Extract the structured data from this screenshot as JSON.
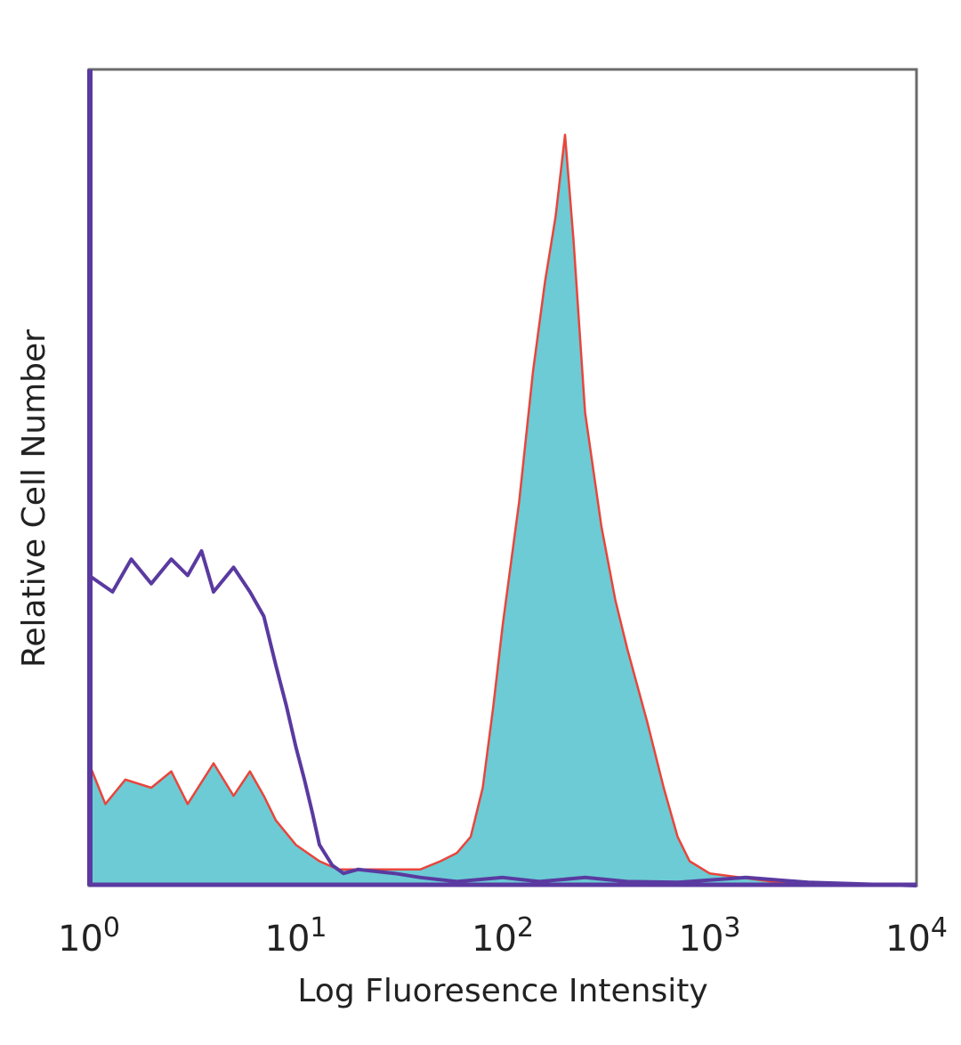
{
  "chart_data": {
    "type": "area",
    "title": "",
    "xlabel": "Log Fluoresence Intensity",
    "ylabel": "Relative Cell Number",
    "xscale": "log",
    "xlim": [
      1,
      10000
    ],
    "ylim": [
      0,
      1
    ],
    "grid": false,
    "x_ticks": [
      {
        "base": "10",
        "exp": "0",
        "value": 1
      },
      {
        "base": "10",
        "exp": "1",
        "value": 10
      },
      {
        "base": "10",
        "exp": "2",
        "value": 100
      },
      {
        "base": "10",
        "exp": "3",
        "value": 1000
      },
      {
        "base": "10",
        "exp": "4",
        "value": 10000
      }
    ],
    "series": [
      {
        "style": "filled",
        "fill_color": "#6ccbd4",
        "line_color": "#e8453c",
        "points": [
          [
            1.0,
            0.15
          ],
          [
            1.2,
            0.1
          ],
          [
            1.5,
            0.13
          ],
          [
            2.0,
            0.12
          ],
          [
            2.5,
            0.14
          ],
          [
            3.0,
            0.1
          ],
          [
            4.0,
            0.15
          ],
          [
            5.0,
            0.11
          ],
          [
            6.0,
            0.14
          ],
          [
            7.0,
            0.11
          ],
          [
            8.0,
            0.08
          ],
          [
            10.0,
            0.05
          ],
          [
            13.0,
            0.03
          ],
          [
            16.0,
            0.02
          ],
          [
            20.0,
            0.02
          ],
          [
            30.0,
            0.02
          ],
          [
            40.0,
            0.02
          ],
          [
            50.0,
            0.03
          ],
          [
            60.0,
            0.04
          ],
          [
            70.0,
            0.06
          ],
          [
            80.0,
            0.12
          ],
          [
            90.0,
            0.22
          ],
          [
            100.0,
            0.32
          ],
          [
            120.0,
            0.47
          ],
          [
            140.0,
            0.63
          ],
          [
            160.0,
            0.74
          ],
          [
            180.0,
            0.82
          ],
          [
            200.0,
            0.92
          ],
          [
            220.0,
            0.79
          ],
          [
            250.0,
            0.58
          ],
          [
            300.0,
            0.44
          ],
          [
            350.0,
            0.35
          ],
          [
            400.0,
            0.29
          ],
          [
            500.0,
            0.2
          ],
          [
            600.0,
            0.12
          ],
          [
            700.0,
            0.06
          ],
          [
            800.0,
            0.03
          ],
          [
            1000.0,
            0.015
          ],
          [
            2000.0,
            0.005
          ],
          [
            10000.0,
            0.0
          ]
        ]
      },
      {
        "style": "line",
        "line_color": "#5a3aa0",
        "points": [
          [
            1.0,
            0.38
          ],
          [
            1.3,
            0.36
          ],
          [
            1.6,
            0.4
          ],
          [
            2.0,
            0.37
          ],
          [
            2.5,
            0.4
          ],
          [
            3.0,
            0.38
          ],
          [
            3.5,
            0.41
          ],
          [
            4.0,
            0.36
          ],
          [
            5.0,
            0.39
          ],
          [
            6.0,
            0.36
          ],
          [
            7.0,
            0.33
          ],
          [
            8.0,
            0.27
          ],
          [
            9.0,
            0.22
          ],
          [
            10.0,
            0.17
          ],
          [
            11.0,
            0.13
          ],
          [
            12.0,
            0.09
          ],
          [
            13.0,
            0.05
          ],
          [
            15.0,
            0.025
          ],
          [
            17.0,
            0.015
          ],
          [
            20.0,
            0.02
          ],
          [
            30.0,
            0.015
          ],
          [
            40.0,
            0.01
          ],
          [
            60.0,
            0.005
          ],
          [
            100.0,
            0.01
          ],
          [
            150.0,
            0.005
          ],
          [
            250.0,
            0.01
          ],
          [
            400.0,
            0.005
          ],
          [
            700.0,
            0.004
          ],
          [
            1500.0,
            0.01
          ],
          [
            3000.0,
            0.004
          ],
          [
            10000.0,
            0.0
          ]
        ]
      }
    ]
  }
}
